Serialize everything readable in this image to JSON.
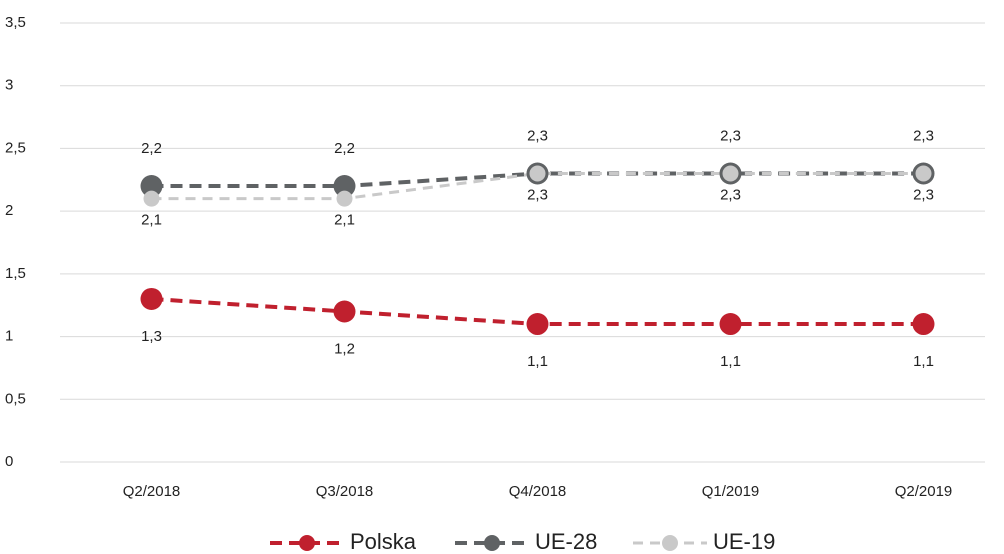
{
  "chart_data": {
    "type": "line",
    "categories": [
      "Q2/2018",
      "Q3/2018",
      "Q4/2018",
      "Q1/2019",
      "Q2/2019"
    ],
    "series": [
      {
        "name": "Polska",
        "color": "#c0202e",
        "values": [
          1.3,
          1.2,
          1.1,
          1.1,
          1.1
        ],
        "value_labels": [
          "1,3",
          "1,2",
          "1,1",
          "1,1",
          "1,1"
        ]
      },
      {
        "name": "UE-28",
        "color": "#5f6264",
        "values": [
          2.2,
          2.2,
          2.3,
          2.3,
          2.3
        ],
        "value_labels": [
          "2,2",
          "2,2",
          "2,3",
          "2,3",
          "2,3"
        ]
      },
      {
        "name": "UE-19",
        "color": "#c9c9c9",
        "values": [
          2.1,
          2.1,
          2.3,
          2.3,
          2.3
        ],
        "value_labels": [
          "2,1",
          "2,1",
          "2,3",
          "2,3",
          "2,3"
        ]
      }
    ],
    "ylim": [
      0,
      3.5
    ],
    "yticks": [
      0,
      {
        "value": 0.5,
        "label": "0,5"
      },
      1,
      {
        "value": 1.5,
        "label": "1,5"
      },
      2,
      {
        "value": 2.5,
        "label": "2,5"
      },
      3,
      {
        "value": 3.5,
        "label": "3,5"
      }
    ],
    "grid": true,
    "legend": "bottom"
  }
}
